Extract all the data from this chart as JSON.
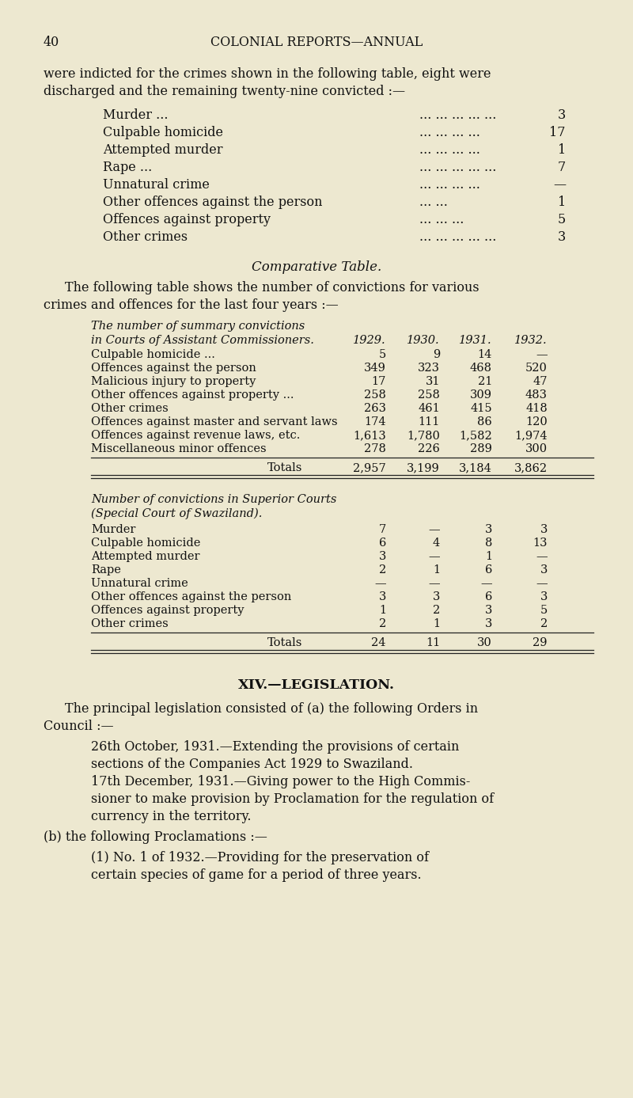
{
  "bg_color": "#ede8d0",
  "text_color": "#1a1a1a",
  "page_number": "40",
  "header": "COLONIAL REPORTS—ANNUAL",
  "intro_text1": "were indicted for the crimes shown in the following table, eight were",
  "intro_text2": "discharged and the remaining twenty-nine convicted :—",
  "convicted_rows": [
    [
      "Murder ...",
      "... ... ... ... ...",
      "3"
    ],
    [
      "Culpable homicide",
      "... ... ... ...",
      "17"
    ],
    [
      "Attempted murder",
      "... ... ... ...",
      "1"
    ],
    [
      "Rape ...",
      "... ... ... ... ...",
      "7"
    ],
    [
      "Unnatural crime",
      "... ... ... ...",
      "—"
    ],
    [
      "Other offences against the person",
      "... ...",
      "1"
    ],
    [
      "Offences against property",
      "... ... ...",
      "5"
    ],
    [
      "Other crimes",
      "... ... ... ... ...",
      "3"
    ]
  ],
  "comparative_title": "Comparative Table.",
  "comparative_intro1": "The following table shows the number of convictions for various",
  "comparative_intro2": "crimes and offences for the last four years :—",
  "summary_heading1": "The number of summary convictions",
  "summary_heading2": "in Courts of Assistant Commissioners.",
  "summary_years": [
    "1929.",
    "1930.",
    "1931.",
    "1932."
  ],
  "summary_rows": [
    [
      "Culpable homicide ...",
      "... ... ...",
      "5",
      "9",
      "14",
      "—"
    ],
    [
      "Offences against the person",
      "... ...",
      "349",
      "323",
      "468",
      "520"
    ],
    [
      "Malicious injury to property",
      "... ...",
      "17",
      "31",
      "21",
      "47"
    ],
    [
      "Other offences against property ...",
      "...",
      "258",
      "258",
      "309",
      "483"
    ],
    [
      "Other crimes",
      "... ... ... ...",
      "263",
      "461",
      "415",
      "418"
    ],
    [
      "Offences against master and servant laws",
      "",
      "174",
      "111",
      "86",
      "120"
    ],
    [
      "Offences against revenue laws, etc.",
      "...",
      "1,613",
      "1,780",
      "1,582",
      "1,974"
    ],
    [
      "Miscellaneous minor offences",
      "... ...",
      "278",
      "226",
      "289",
      "300"
    ]
  ],
  "summary_totals_label": "Totals",
  "summary_totals": [
    "2,957",
    "3,199",
    "3,184",
    "3,862"
  ],
  "superior_heading1": "Number of convictions in Superior Courts",
  "superior_heading2": "(Special Court of Swaziland).",
  "superior_rows": [
    [
      "Murder",
      "7",
      "—",
      "3",
      "3"
    ],
    [
      "Culpable homicide",
      "6",
      "4",
      "8",
      "13"
    ],
    [
      "Attempted murder",
      "3",
      "—",
      "1",
      "—"
    ],
    [
      "Rape",
      "2",
      "1",
      "6",
      "3"
    ],
    [
      "Unnatural crime",
      "—",
      "—",
      "—",
      "—"
    ],
    [
      "Other offences against the person",
      "3",
      "3",
      "6",
      "3"
    ],
    [
      "Offences against property",
      "1",
      "2",
      "3",
      "5"
    ],
    [
      "Other crimes",
      "2",
      "1",
      "3",
      "2"
    ]
  ],
  "superior_totals_label": "Totals",
  "superior_totals": [
    "24",
    "11",
    "30",
    "29"
  ],
  "legislation_heading": "XIV.—LEGISLATION.",
  "legislation_para1": "The principal legislation consisted of (a) the following Orders in",
  "legislation_para2": "Council :—",
  "item1_lines": [
    "26th October, 1931.—Extending the provisions of certain",
    "sections of the Companies Act 1929 to Swaziland."
  ],
  "item2_lines": [
    "17th December, 1931.—Giving power to the High Commis-",
    "sioner to make provision by Proclamation for the regulation of",
    "currency in the territory."
  ],
  "legislation_b": "(b) the following Proclamations :—",
  "b_item_lines": [
    "(1) No. 1 of 1932.—Providing for the preservation of",
    "certain species of game for a period of three years."
  ]
}
